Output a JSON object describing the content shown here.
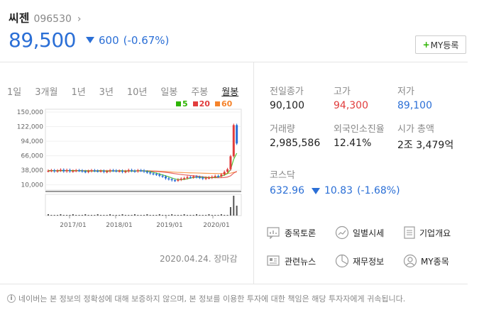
{
  "stock": {
    "name": "씨젠",
    "code": "096530",
    "price": "89,500",
    "change": "600",
    "change_pct": "(-0.67%)",
    "direction": "down",
    "my_button": "MY등록"
  },
  "period_tabs": [
    "1일",
    "3개월",
    "1년",
    "3년",
    "10년",
    "일봉",
    "주봉",
    "월봉"
  ],
  "active_tab": "월봉",
  "chart_data": {
    "type": "candlestick",
    "y_ticks": [
      "150,000",
      "122,000",
      "94,000",
      "66,000",
      "38,000",
      "10,000"
    ],
    "ylim": [
      0,
      150000
    ],
    "x_ticks": [
      "2017/01",
      "2018/01",
      "2019/01",
      "2020/01"
    ],
    "series": [
      {
        "name": "5",
        "color": "#2db400"
      },
      {
        "name": "20",
        "color": "#e13c3c"
      },
      {
        "name": "60",
        "color": "#f5832b"
      }
    ],
    "close_values": [
      37000,
      38000,
      36000,
      37500,
      39000,
      36000,
      38500,
      36000,
      37000,
      38000,
      37500,
      36000,
      35000,
      36500,
      38000,
      37000,
      36500,
      37000,
      35000,
      36000,
      38000,
      37500,
      36500,
      37000,
      35000,
      36000,
      38500,
      37000,
      36000,
      38000,
      37500,
      35500,
      34000,
      32000,
      31000,
      30000,
      27500,
      26000,
      22500,
      21000,
      19000,
      18500,
      20000,
      22000,
      23000,
      25000,
      24500,
      26000,
      25000,
      24000,
      22000,
      23500,
      24000,
      25500,
      27000,
      26500,
      30000,
      35000,
      40000,
      65000,
      125000,
      89500
    ],
    "date": "2020.04.24.",
    "date_suffix": "장마감"
  },
  "info": {
    "prev_close_label": "전일종가",
    "prev_close": "90,100",
    "high_label": "고가",
    "high": "94,300",
    "low_label": "저가",
    "low": "89,100",
    "volume_label": "거래량",
    "volume": "2,985,586",
    "foreign_label": "외국인소진율",
    "foreign": "12.41%",
    "mcap_label": "시가 총액",
    "mcap": "2조 3,479억"
  },
  "index": {
    "label": "코스닥",
    "value": "632.96",
    "change": "10.83",
    "change_pct": "(-1.68%)"
  },
  "links": [
    "종목토론",
    "일별시세",
    "기업개요",
    "관련뉴스",
    "재무정보",
    "MY종목"
  ],
  "footer": {
    "info_mark": "i",
    "text": "네이버는 본 정보의 정확성에 대해 보증하지 않으며, 본 정보를 이용한 투자에 대한 책임은 해당 투자자에게 귀속됩니다."
  }
}
